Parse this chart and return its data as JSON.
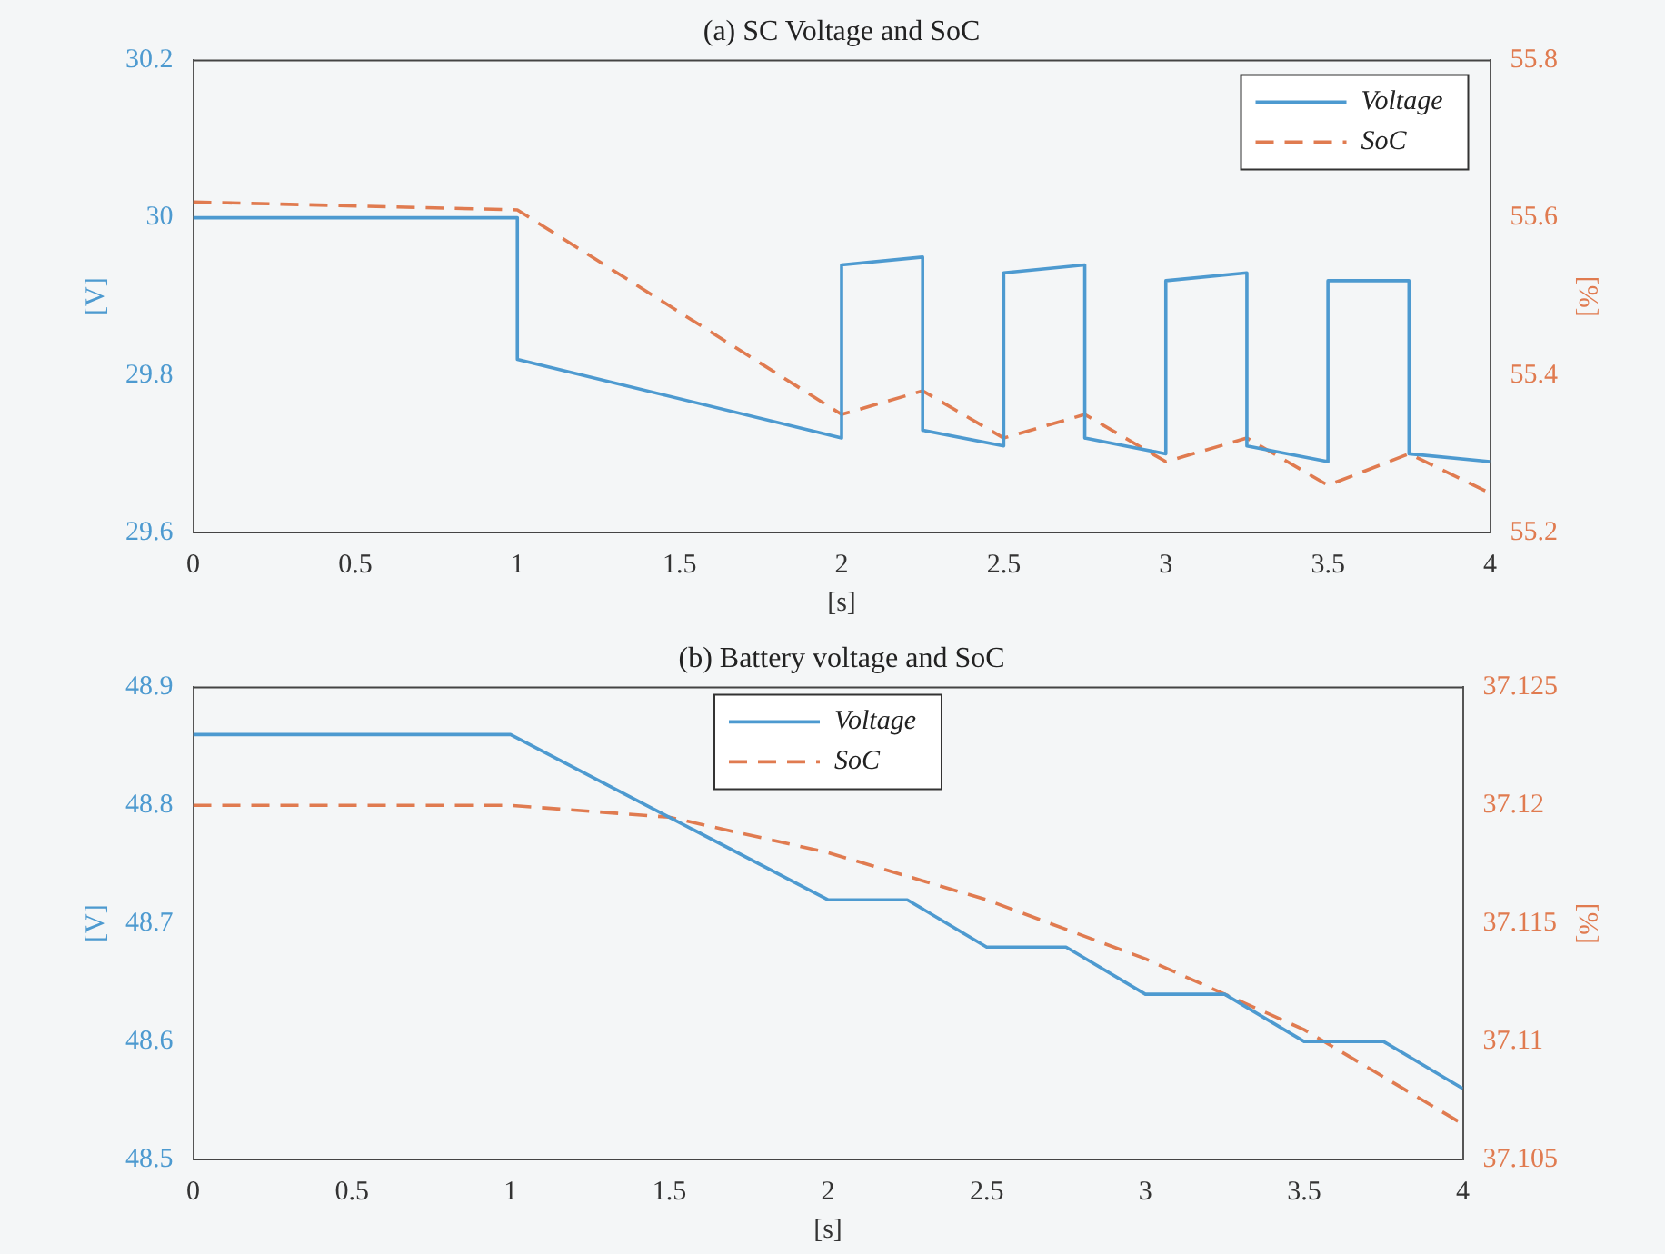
{
  "chart_data": [
    {
      "type": "line",
      "title": "(a) SC Voltage and SoC",
      "xlabel": "[s]",
      "ylabel": "[V]",
      "y2label": "[%]",
      "xlim": [
        0,
        4
      ],
      "xticks": [
        0,
        0.5,
        1,
        1.5,
        2,
        2.5,
        3,
        3.5,
        4
      ],
      "ylim": [
        29.6,
        30.2
      ],
      "yticks": [
        29.6,
        29.8,
        30,
        30.2
      ],
      "y2lim": [
        55.2,
        55.8
      ],
      "y2ticks": [
        55.2,
        55.4,
        55.6,
        55.8
      ],
      "grid": false,
      "legend": "top right",
      "marker": "none",
      "series": [
        {
          "name": "Voltage",
          "color": "#4d9ad0",
          "axis": "y",
          "line_style": "solid",
          "x": [
            0,
            1,
            1,
            2,
            2,
            2.25,
            2.25,
            2.5,
            2.5,
            2.75,
            2.75,
            3,
            3,
            3.25,
            3.25,
            3.5,
            3.5,
            3.75,
            3.75,
            4
          ],
          "values": [
            30.0,
            30.0,
            29.82,
            29.72,
            29.94,
            29.95,
            29.73,
            29.71,
            29.93,
            29.94,
            29.72,
            29.7,
            29.92,
            29.93,
            29.71,
            29.69,
            29.92,
            29.92,
            29.7,
            29.69
          ]
        },
        {
          "name": "SoC",
          "color": "#e07b50",
          "axis": "y2",
          "line_style": "dashed",
          "x": [
            0,
            1,
            2,
            2.25,
            2.5,
            2.75,
            3,
            3.25,
            3.5,
            3.75,
            4
          ],
          "values": [
            55.62,
            55.61,
            55.35,
            55.38,
            55.32,
            55.35,
            55.29,
            55.32,
            55.26,
            55.3,
            55.25
          ]
        }
      ]
    },
    {
      "type": "line",
      "title": "(b) Battery voltage and SoC",
      "xlabel": "[s]",
      "ylabel": "[V]",
      "y2label": "[%]",
      "xlim": [
        0,
        4
      ],
      "xticks": [
        0,
        0.5,
        1,
        1.5,
        2,
        2.5,
        3,
        3.5,
        4
      ],
      "ylim": [
        48.5,
        48.9
      ],
      "yticks": [
        48.5,
        48.6,
        48.7,
        48.8,
        48.9
      ],
      "y2lim": [
        37.105,
        37.125
      ],
      "y2ticks": [
        37.105,
        37.11,
        37.115,
        37.12,
        37.125
      ],
      "grid": false,
      "legend": "top",
      "marker": "none",
      "series": [
        {
          "name": "Voltage",
          "color": "#4d9ad0",
          "axis": "y",
          "line_style": "solid",
          "x": [
            0,
            1,
            1.5,
            2,
            2.25,
            2.5,
            2.75,
            3,
            3.25,
            3.5,
            3.75,
            4
          ],
          "values": [
            48.86,
            48.86,
            48.79,
            48.72,
            48.72,
            48.68,
            48.68,
            48.64,
            48.64,
            48.6,
            48.6,
            48.56
          ]
        },
        {
          "name": "SoC",
          "color": "#e07b50",
          "axis": "y2",
          "line_style": "dashed",
          "x": [
            0,
            1,
            1.5,
            2,
            2.5,
            3,
            3.5,
            4
          ],
          "values": [
            37.12,
            37.12,
            37.1195,
            37.118,
            37.116,
            37.1135,
            37.1105,
            37.1065
          ]
        }
      ]
    }
  ]
}
